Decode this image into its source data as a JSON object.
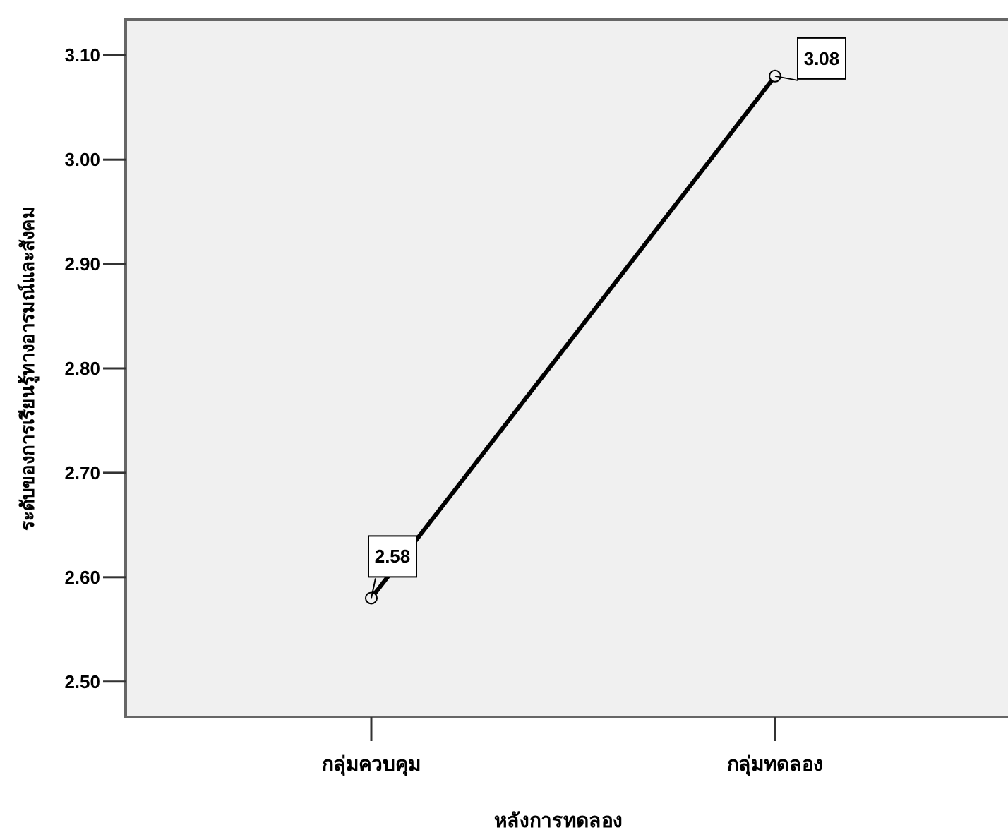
{
  "chart_data": {
    "type": "line",
    "xlabel": "หลังการทดลอง",
    "ylabel": "ระดับของการเรียนรู้ทางอารมณ์และสังคม",
    "categories": [
      "กลุ่มควบคุม",
      "กลุ่มทดลอง"
    ],
    "series": [
      {
        "color": "#000000",
        "values": [
          2.58,
          3.08
        ]
      }
    ],
    "ylim": [
      2.466,
      3.134
    ],
    "yticks": [
      {
        "value": 2.5,
        "label": "2.50"
      },
      {
        "value": 2.6,
        "label": "2.60"
      },
      {
        "value": 2.7,
        "label": "2.70"
      },
      {
        "value": 2.8,
        "label": "2.80"
      },
      {
        "value": 2.9,
        "label": "2.90"
      },
      {
        "value": 3.0,
        "label": "3.00"
      },
      {
        "value": 3.1,
        "label": "3.10"
      }
    ],
    "data_labels": true,
    "marker": "circle",
    "grid": false
  }
}
